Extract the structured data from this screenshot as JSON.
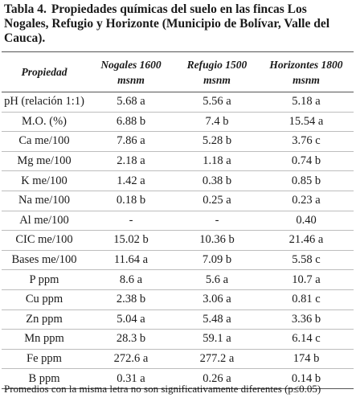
{
  "caption": {
    "number": "Tabla 4.",
    "text": "Propiedades químicas del suelo en las fincas Los Nogales, Refugio y Horizonte (Municipio de Bolívar, Valle del Cauca)."
  },
  "table": {
    "headers": [
      {
        "line1": "Propiedad",
        "line2": ""
      },
      {
        "line1": "Nogales 1600",
        "line2": "msnm"
      },
      {
        "line1": "Refugio 1500",
        "line2": "msnm"
      },
      {
        "line1": "Horizontes 1800",
        "line2": "msnm"
      }
    ],
    "rows": [
      [
        "pH (relación 1:1)",
        "5.68 a",
        "5.56 a",
        "5.18 a"
      ],
      [
        "M.O. (%)",
        "6.88 b",
        "7.4 b",
        "15.54 a"
      ],
      [
        "Ca me/100",
        "7.86 a",
        "5.28 b",
        "3.76 c"
      ],
      [
        "Mg me/100",
        "2.18 a",
        "1.18 a",
        "0.74 b"
      ],
      [
        "K me/100",
        "1.42 a",
        "0.38 b",
        "0.85 b"
      ],
      [
        "Na me/100",
        "0.18 b",
        "0.25 a",
        "0.23 a"
      ],
      [
        "Al me/100",
        "-",
        "-",
        "0.40"
      ],
      [
        "CIC me/100",
        "15.02 b",
        "10.36 b",
        "21.46 a"
      ],
      [
        "Bases me/100",
        "11.64 a",
        "7.09 b",
        "5.58 c"
      ],
      [
        "P ppm",
        "8.6 a",
        "5.6 a",
        "10.7 a"
      ],
      [
        "Cu ppm",
        "2.38 b",
        "3.06 a",
        "0.81 c"
      ],
      [
        "Zn ppm",
        "5.04 a",
        "5.48 a",
        "3.36 b"
      ],
      [
        "Mn ppm",
        "28.3 b",
        "59.1 a",
        "6.14 c"
      ],
      [
        "Fe ppm",
        "272.6 a",
        "277.2 a",
        "174 b"
      ],
      [
        "B ppm",
        "0.31 a",
        "0.26 a",
        "0.14 b"
      ]
    ]
  },
  "footnote": "Promedios con la misma letra no son significativamente diferentes (p≤0.05)"
}
